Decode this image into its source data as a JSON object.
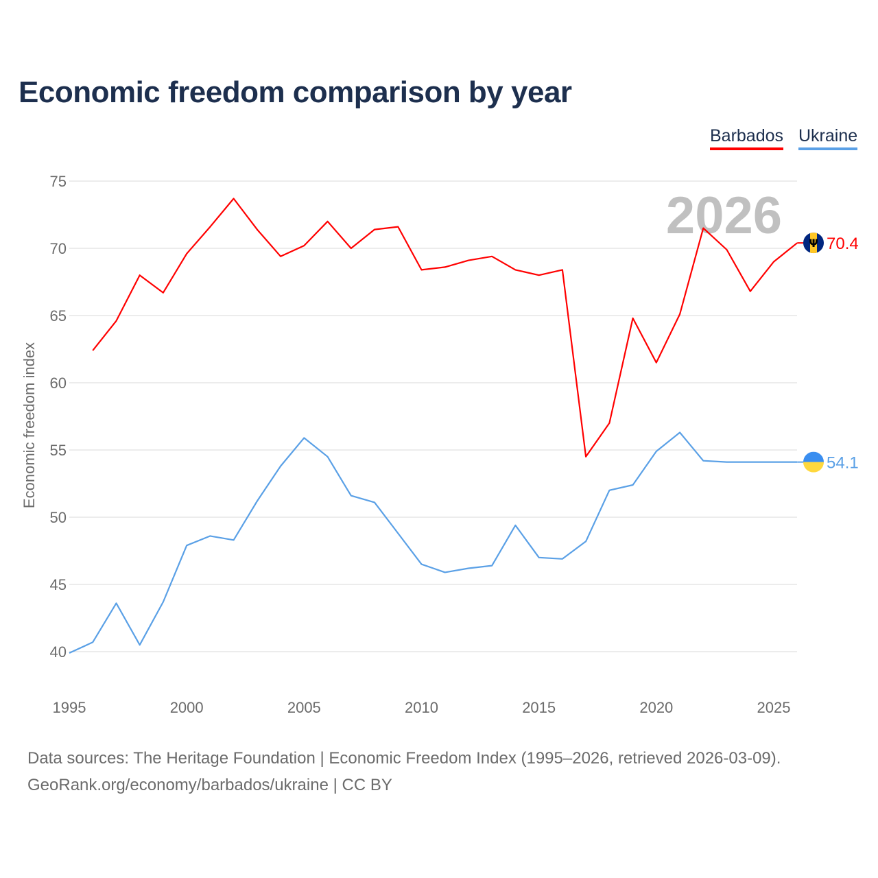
{
  "chart_data": {
    "type": "line",
    "title": "Economic freedom comparison by year",
    "xlabel": "",
    "ylabel": "Economic freedom index",
    "xlim": [
      1995,
      2026
    ],
    "ylim": [
      37.5,
      75
    ],
    "yticks": [
      40,
      45,
      50,
      55,
      60,
      65,
      70,
      75
    ],
    "xticks": [
      1995,
      2000,
      2005,
      2010,
      2015,
      2020,
      2025
    ],
    "grid": true,
    "legend_placement": "top-right",
    "year_label": "2026",
    "series": [
      {
        "name": "Barbados",
        "color": "#ff0000",
        "end_label": "70.4",
        "x": [
          1996,
          1997,
          1998,
          1999,
          2000,
          2001,
          2002,
          2003,
          2004,
          2005,
          2006,
          2007,
          2008,
          2009,
          2010,
          2011,
          2012,
          2013,
          2014,
          2015,
          2016,
          2017,
          2018,
          2019,
          2020,
          2021,
          2022,
          2023,
          2024,
          2025,
          2026
        ],
        "values": [
          62.4,
          64.6,
          68.0,
          66.7,
          69.6,
          71.6,
          73.7,
          71.4,
          69.4,
          70.2,
          72.0,
          70.0,
          71.4,
          71.6,
          68.4,
          68.6,
          69.1,
          69.4,
          68.4,
          68.0,
          68.4,
          54.5,
          57.0,
          64.8,
          61.5,
          65.1,
          71.5,
          69.9,
          66.8,
          69.0,
          70.4
        ]
      },
      {
        "name": "Ukraine",
        "color": "#5aa0e6",
        "end_label": "54.1",
        "x": [
          1995,
          1996,
          1997,
          1998,
          1999,
          2000,
          2001,
          2002,
          2003,
          2004,
          2005,
          2006,
          2007,
          2008,
          2009,
          2010,
          2011,
          2012,
          2013,
          2014,
          2015,
          2016,
          2017,
          2018,
          2019,
          2020,
          2021,
          2022,
          2023,
          2024,
          2025,
          2026
        ],
        "values": [
          39.9,
          40.7,
          43.6,
          40.5,
          43.7,
          47.9,
          48.6,
          48.3,
          51.2,
          53.8,
          55.9,
          54.5,
          51.6,
          51.1,
          48.8,
          46.5,
          45.9,
          46.2,
          46.4,
          49.4,
          47.0,
          46.9,
          48.2,
          52.0,
          52.4,
          54.9,
          56.3,
          54.2,
          54.1,
          54.1,
          54.1,
          54.1
        ]
      }
    ]
  },
  "footer": {
    "line1": "Data sources: The Heritage Foundation | Economic Freedom Index (1995–2026, retrieved 2026-03-09).",
    "line2": "GeoRank.org/economy/barbados/ukraine | CC BY"
  }
}
